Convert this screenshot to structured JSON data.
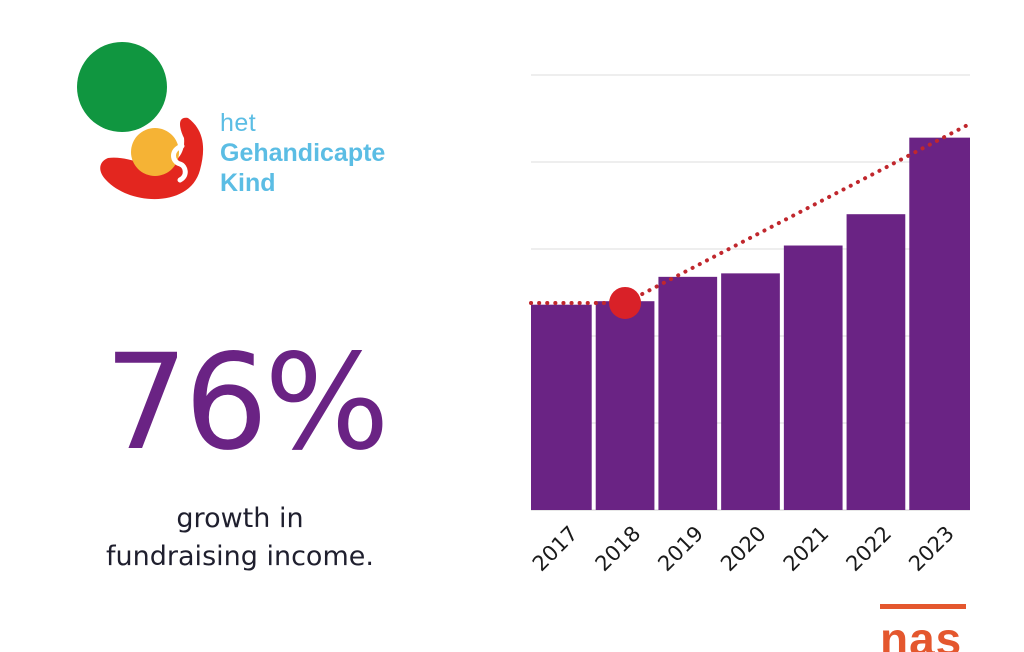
{
  "logo": {
    "line1": "het",
    "line2": "Gehandicapte",
    "line3": "Kind",
    "colors": {
      "green": "#109640",
      "orange": "#f5b335",
      "red": "#e3261f",
      "text": "#5bbde4"
    }
  },
  "headline": {
    "value": "76%",
    "caption_line1": "growth in",
    "caption_line2": "fundraising income."
  },
  "footer": {
    "logo_text": "nas"
  },
  "chart_data": {
    "type": "bar",
    "title": "",
    "xlabel": "",
    "ylabel": "",
    "categories": [
      "2017",
      "2018",
      "2019",
      "2020",
      "2021",
      "2022",
      "2023"
    ],
    "values": [
      59,
      60,
      67,
      68,
      76,
      85,
      107
    ],
    "ylim": [
      0,
      125
    ],
    "grid": true,
    "bar_color": "#6a2384",
    "trendline": {
      "style": "dotted",
      "color": "#c0272d",
      "start": 59.5,
      "end": 111
    },
    "marker": {
      "category": "2018",
      "value": 59.5,
      "color": "#d92128"
    }
  }
}
